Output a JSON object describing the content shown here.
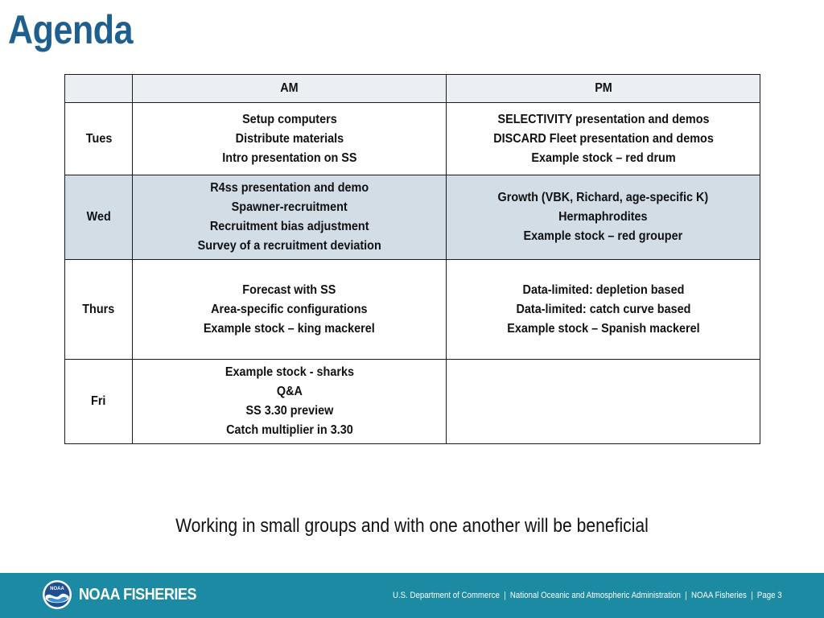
{
  "slide": {
    "title": "Agenda",
    "note": "Working in small groups and with one another will be beneficial"
  },
  "table": {
    "headers": {
      "day": "",
      "am": "AM",
      "pm": "PM"
    },
    "rows": [
      {
        "day": "Tues",
        "am": [
          "Setup computers",
          "Distribute materials",
          "Intro presentation on SS"
        ],
        "pm": [
          "SELECTIVITY presentation and demos",
          "DISCARD Fleet presentation and demos",
          "Example stock – red drum"
        ]
      },
      {
        "day": "Wed",
        "am": [
          "R4ss presentation and demo",
          "Spawner-recruitment",
          "Recruitment bias adjustment",
          "Survey of a recruitment deviation"
        ],
        "pm": [
          "Growth (VBK, Richard, age-specific K)",
          "Hermaphrodites",
          "Example stock – red grouper"
        ]
      },
      {
        "day": "Thurs",
        "am": [
          "Forecast with SS",
          "Area-specific configurations",
          "Example stock – king mackerel"
        ],
        "pm": [
          "Data-limited:  depletion based",
          "Data-limited:  catch curve based",
          "Example stock – Spanish mackerel"
        ]
      },
      {
        "day": "Fri",
        "am": [
          "Example stock - sharks",
          "Q&A",
          "SS 3.30 preview",
          "Catch multiplier in 3.30"
        ],
        "pm": []
      }
    ]
  },
  "footer": {
    "brand": "NOAA FISHERIES",
    "logo_text": "NOAA",
    "parts": [
      "U.S. Department of Commerce",
      "National Oceanic and Atmospheric Administration",
      "NOAA Fisheries",
      "Page 3"
    ],
    "separator": "|"
  },
  "colors": {
    "title": "#1f5f8f",
    "wed_row": "#d2dde6",
    "footer_bar": "#1c8aa3"
  }
}
